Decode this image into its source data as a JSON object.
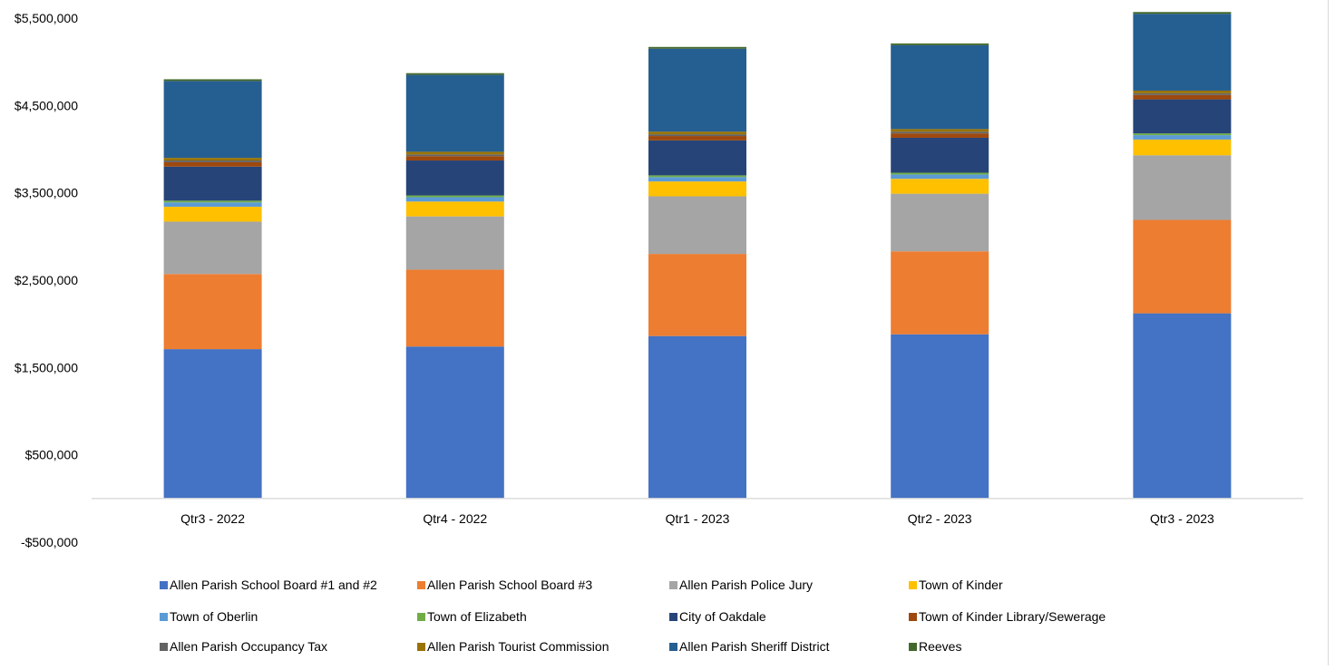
{
  "chart_data": {
    "type": "bar",
    "stacked": true,
    "title": "",
    "xlabel": "",
    "ylabel": "",
    "ylim": [
      -500000,
      5500000
    ],
    "y_ticks": [
      -500000,
      500000,
      1500000,
      2500000,
      3500000,
      4500000,
      5500000
    ],
    "y_tick_labels": [
      "-$500,000",
      "$500,000",
      "$1,500,000",
      "$2,500,000",
      "$3,500,000",
      "$4,500,000",
      "$5,500,000"
    ],
    "grid": false,
    "legend_position": "bottom",
    "categories": [
      "Qtr3 - 2022",
      "Qtr4 - 2022",
      "Qtr1 - 2023",
      "Qtr2 - 2023",
      "Qtr3 - 2023"
    ],
    "series": [
      {
        "name": "Allen Parish School Board #1 and #2",
        "color": "#4472C4",
        "values": [
          1710000,
          1740000,
          1860000,
          1880000,
          2120000
        ]
      },
      {
        "name": "Allen Parish School Board #3",
        "color": "#ED7D31",
        "values": [
          860000,
          880000,
          940000,
          950000,
          1070000
        ]
      },
      {
        "name": "Allen Parish Police Jury",
        "color": "#A5A5A5",
        "values": [
          600000,
          610000,
          660000,
          660000,
          740000
        ]
      },
      {
        "name": "Town of Kinder",
        "color": "#FFC000",
        "values": [
          170000,
          170000,
          170000,
          170000,
          180000
        ]
      },
      {
        "name": "Town of Oberlin",
        "color": "#5B9BD5",
        "values": [
          50000,
          50000,
          50000,
          50000,
          50000
        ]
      },
      {
        "name": "Town of Elizabeth",
        "color": "#70AD47",
        "values": [
          20000,
          20000,
          20000,
          20000,
          20000
        ]
      },
      {
        "name": "City of Oakdale",
        "color": "#264478",
        "values": [
          390000,
          400000,
          400000,
          400000,
          390000
        ]
      },
      {
        "name": "Town of Kinder Library/Sewerage",
        "color": "#9E480E",
        "values": [
          50000,
          50000,
          50000,
          50000,
          50000
        ]
      },
      {
        "name": "Allen Parish Occupancy Tax",
        "color": "#636363",
        "values": [
          20000,
          20000,
          20000,
          20000,
          20000
        ]
      },
      {
        "name": "Allen Parish Tourist Commission",
        "color": "#997300",
        "values": [
          30000,
          30000,
          30000,
          30000,
          30000
        ]
      },
      {
        "name": "Allen Parish Sheriff District",
        "color": "#255E91",
        "values": [
          880000,
          880000,
          950000,
          960000,
          880000
        ]
      },
      {
        "name": "Reeves",
        "color": "#43682B",
        "values": [
          20000,
          20000,
          20000,
          20000,
          20000
        ]
      }
    ]
  }
}
